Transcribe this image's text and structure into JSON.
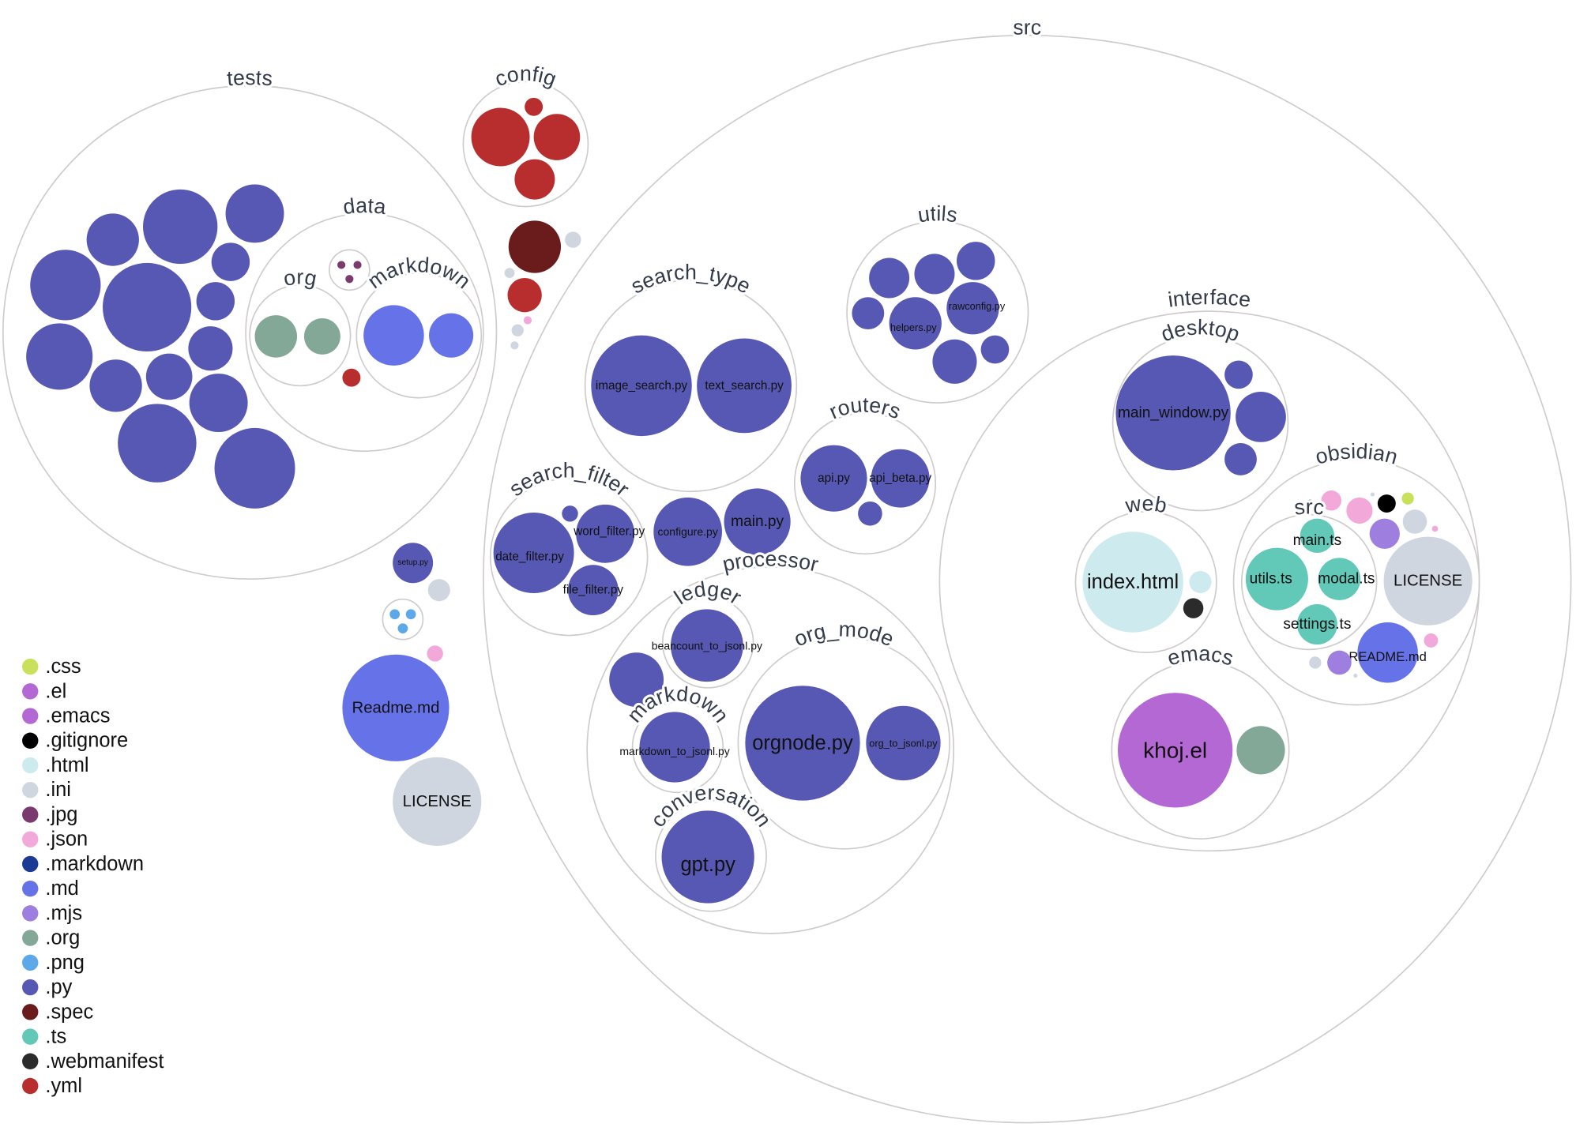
{
  "folders": [
    {
      "label": "src"
    },
    {
      "label": "tests"
    },
    {
      "label": "data"
    },
    {
      "label": "org"
    },
    {
      "label": "markdown"
    },
    {
      "label": "config"
    },
    {
      "label": ""
    },
    {
      "label": ""
    },
    {
      "label": "search_type"
    },
    {
      "label": "utils"
    },
    {
      "label": "routers"
    },
    {
      "label": "search_filter"
    },
    {
      "label": "processor"
    },
    {
      "label": "ledger"
    },
    {
      "label": "markdown"
    },
    {
      "label": "org_mode"
    },
    {
      "label": "conversation"
    },
    {
      "label": "interface"
    },
    {
      "label": "desktop"
    },
    {
      "label": "web"
    },
    {
      "label": "obsidian"
    },
    {
      "label": "src"
    },
    {
      "label": "emacs"
    }
  ],
  "files": [
    {
      "ext": ".py",
      "label": ""
    },
    {
      "ext": ".py",
      "label": ""
    },
    {
      "ext": ".py",
      "label": ""
    },
    {
      "ext": ".py",
      "label": ""
    },
    {
      "ext": ".py",
      "label": ""
    },
    {
      "ext": ".py",
      "label": ""
    },
    {
      "ext": ".py",
      "label": ""
    },
    {
      "ext": ".py",
      "label": ""
    },
    {
      "ext": ".py",
      "label": ""
    },
    {
      "ext": ".py",
      "label": ""
    },
    {
      "ext": ".py",
      "label": ""
    },
    {
      "ext": ".py",
      "label": ""
    },
    {
      "ext": ".py",
      "label": ""
    },
    {
      "ext": ".py",
      "label": ""
    },
    {
      "ext": ".jpg",
      "label": ""
    },
    {
      "ext": ".jpg",
      "label": ""
    },
    {
      "ext": ".jpg",
      "label": ""
    },
    {
      "ext": ".org",
      "label": ""
    },
    {
      "ext": ".org",
      "label": ""
    },
    {
      "ext": ".md",
      "label": ""
    },
    {
      "ext": ".md",
      "label": ""
    },
    {
      "ext": ".yml",
      "label": ""
    },
    {
      "ext": ".yml",
      "label": ""
    },
    {
      "ext": ".yml",
      "label": ""
    },
    {
      "ext": ".yml",
      "label": ""
    },
    {
      "ext": ".yml",
      "label": ""
    },
    {
      "ext": ".spec",
      "label": ""
    },
    {
      "ext": ".ini",
      "label": ""
    },
    {
      "ext": ".ini",
      "label": ""
    },
    {
      "ext": ".yml",
      "label": ""
    },
    {
      "ext": ".json",
      "label": ""
    },
    {
      "ext": ".ini",
      "label": ""
    },
    {
      "ext": ".ini",
      "label": ""
    },
    {
      "ext": ".py",
      "label": "setup.py"
    },
    {
      "ext": ".ini",
      "label": ""
    },
    {
      "ext": ".png",
      "label": ""
    },
    {
      "ext": ".png",
      "label": ""
    },
    {
      "ext": ".png",
      "label": ""
    },
    {
      "ext": ".json",
      "label": ""
    },
    {
      "ext": ".md",
      "label": "Readme.md"
    },
    {
      "ext": ".ini",
      "label": "LICENSE"
    },
    {
      "ext": ".py",
      "label": "image_search.py"
    },
    {
      "ext": ".py",
      "label": "text_search.py"
    },
    {
      "ext": ".py",
      "label": ""
    },
    {
      "ext": ".py",
      "label": ""
    },
    {
      "ext": ".py",
      "label": ""
    },
    {
      "ext": ".py",
      "label": ""
    },
    {
      "ext": ".py",
      "label": "helpers.py"
    },
    {
      "ext": ".py",
      "label": "rawconfig.py"
    },
    {
      "ext": ".py",
      "label": ""
    },
    {
      "ext": ".py",
      "label": ""
    },
    {
      "ext": ".py",
      "label": "api.py"
    },
    {
      "ext": ".py",
      "label": "api_beta.py"
    },
    {
      "ext": ".py",
      "label": ""
    },
    {
      "ext": ".py",
      "label": "date_filter.py"
    },
    {
      "ext": ".py",
      "label": "word_filter.py"
    },
    {
      "ext": ".py",
      "label": "file_filter.py"
    },
    {
      "ext": ".py",
      "label": ""
    },
    {
      "ext": ".py",
      "label": "configure.py"
    },
    {
      "ext": ".py",
      "label": "main.py"
    },
    {
      "ext": ".py",
      "label": "beancount_to_jsonl.py"
    },
    {
      "ext": ".py",
      "label": ""
    },
    {
      "ext": ".py",
      "label": "markdown_to_jsonl.py"
    },
    {
      "ext": ".py",
      "label": "orgnode.py"
    },
    {
      "ext": ".py",
      "label": "org_to_jsonl.py"
    },
    {
      "ext": ".py",
      "label": "gpt.py"
    },
    {
      "ext": ".py",
      "label": "main_window.py"
    },
    {
      "ext": ".py",
      "label": ""
    },
    {
      "ext": ".py",
      "label": ""
    },
    {
      "ext": ".py",
      "label": ""
    },
    {
      "ext": ".html",
      "label": "index.html"
    },
    {
      "ext": ".html",
      "label": ""
    },
    {
      "ext": ".webmanifest",
      "label": ""
    },
    {
      "ext": ".el",
      "label": "khoj.el"
    },
    {
      "ext": ".org",
      "label": ""
    },
    {
      "ext": ".ts",
      "label": "main.ts"
    },
    {
      "ext": ".ts",
      "label": "utils.ts"
    },
    {
      "ext": ".ts",
      "label": "modal.ts"
    },
    {
      "ext": ".ts",
      "label": "settings.ts"
    },
    {
      "ext": ".png",
      "label": ""
    },
    {
      "ext": ".json",
      "label": ""
    },
    {
      "ext": ".json",
      "label": ""
    },
    {
      "ext": ".ini",
      "label": ""
    },
    {
      "ext": ".gitignore",
      "label": ""
    },
    {
      "ext": ".css",
      "label": ""
    },
    {
      "ext": ".mjs",
      "label": ""
    },
    {
      "ext": ".ini",
      "label": ""
    },
    {
      "ext": ".json",
      "label": ""
    },
    {
      "ext": ".ini",
      "label": "LICENSE"
    },
    {
      "ext": ".md",
      "label": "README.md"
    },
    {
      "ext": ".json",
      "label": ""
    },
    {
      "ext": ".ini",
      "label": ""
    },
    {
      "ext": ".mjs",
      "label": ""
    },
    {
      "ext": ".ini",
      "label": ""
    }
  ],
  "legend": [
    {
      "ext": ".css",
      "color": "#c8e05a"
    },
    {
      "ext": ".el",
      "color": "#b468d4"
    },
    {
      "ext": ".emacs",
      "color": "#b468d4"
    },
    {
      "ext": ".gitignore",
      "color": "#000000"
    },
    {
      "ext": ".html",
      "color": "#cdebee"
    },
    {
      "ext": ".ini",
      "color": "#d0d6df"
    },
    {
      "ext": ".jpg",
      "color": "#7a3a6e"
    },
    {
      "ext": ".json",
      "color": "#f2a8d8"
    },
    {
      "ext": ".markdown",
      "color": "#1a3a94"
    },
    {
      "ext": ".md",
      "color": "#6672e8"
    },
    {
      "ext": ".mjs",
      "color": "#9e7fe0"
    },
    {
      "ext": ".org",
      "color": "#83a898"
    },
    {
      "ext": ".png",
      "color": "#5da8e8"
    },
    {
      "ext": ".py",
      "color": "#5658b3"
    },
    {
      "ext": ".spec",
      "color": "#6a1b1b"
    },
    {
      "ext": ".ts",
      "color": "#62c8b8"
    },
    {
      "ext": ".webmanifest",
      "color": "#2b2b2b"
    },
    {
      "ext": ".yml",
      "color": "#b82e2e"
    }
  ]
}
